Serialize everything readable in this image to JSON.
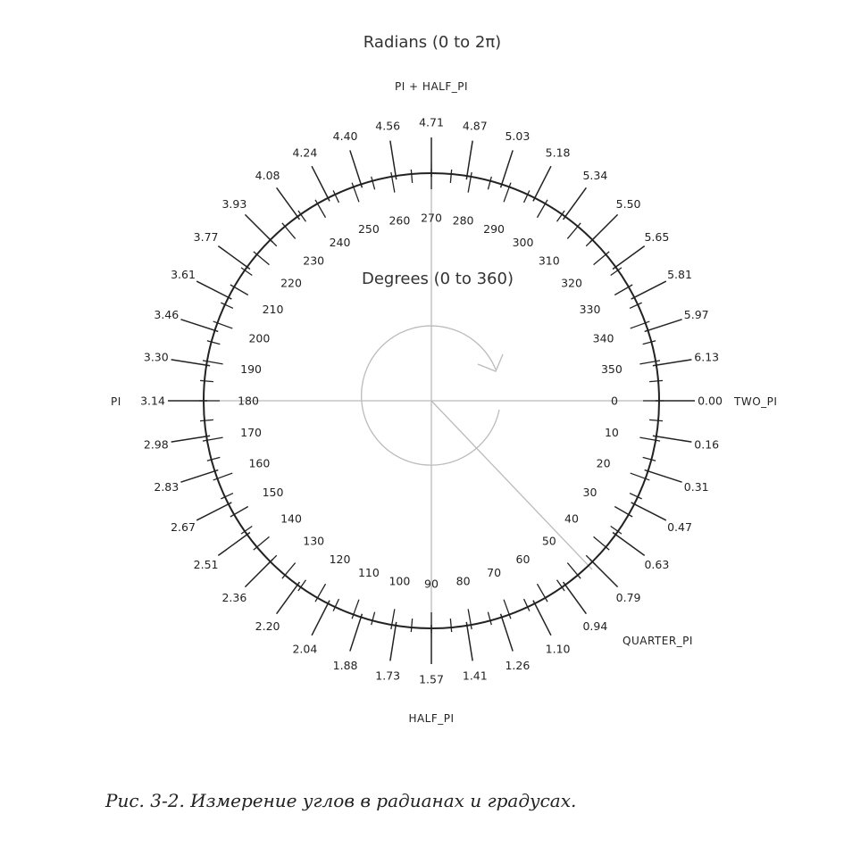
{
  "radians_title": "Radians (0 to 2π)",
  "degrees_title": "Degrees (0 to 360)",
  "constants": {
    "pi_half_pi": "PI + HALF_PI",
    "half_pi": "HALF_PI",
    "pi": "PI",
    "two_pi": "TWO_PI",
    "quarter_pi": "QUARTER_PI"
  },
  "degree_labels": [
    "0",
    "10",
    "20",
    "30",
    "40",
    "50",
    "60",
    "70",
    "80",
    "90",
    "100",
    "110",
    "120",
    "130",
    "140",
    "150",
    "160",
    "170",
    "180",
    "190",
    "200",
    "210",
    "220",
    "230",
    "240",
    "250",
    "260",
    "270",
    "280",
    "290",
    "300",
    "310",
    "320",
    "330",
    "340",
    "350"
  ],
  "radian_labels": [
    "0.00",
    "0.16",
    "0.31",
    "0.47",
    "0.63",
    "0.79",
    "0.94",
    "1.10",
    "1.26",
    "1.41",
    "1.57",
    "1.73",
    "1.88",
    "2.04",
    "2.20",
    "2.36",
    "2.51",
    "2.67",
    "2.83",
    "2.98",
    "3.14",
    "3.30",
    "3.46",
    "3.61",
    "3.77",
    "3.93",
    "4.08",
    "4.24",
    "4.40",
    "4.56",
    "4.71",
    "4.87",
    "5.03",
    "5.18",
    "5.34",
    "5.50",
    "5.65",
    "5.81",
    "5.97",
    "6.13"
  ],
  "caption": "Рис. 3-2. Измерение углов в радианах и градусах."
}
